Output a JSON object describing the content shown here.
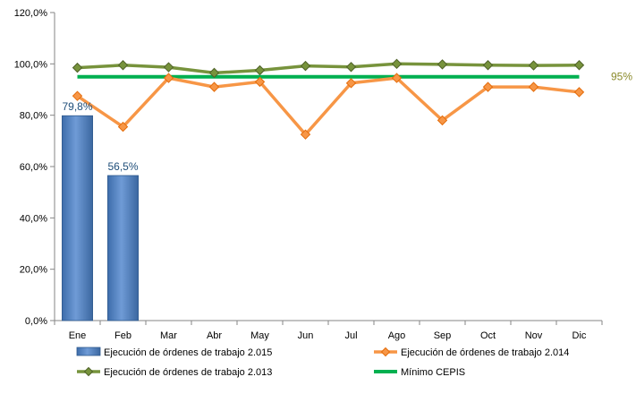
{
  "chart_data": {
    "type": "bar",
    "categories": [
      "Ene",
      "Feb",
      "Mar",
      "Abr",
      "May",
      "Jun",
      "Jul",
      "Ago",
      "Sep",
      "Oct",
      "Nov",
      "Dic"
    ],
    "ylim": [
      0,
      120
    ],
    "y_ticks": [
      "0,0%",
      "20,0%",
      "40,0%",
      "60,0%",
      "80,0%",
      "100,0%",
      "120,0%"
    ],
    "y_tick_values": [
      0,
      20,
      40,
      60,
      80,
      100,
      120
    ],
    "grid": false,
    "legend_position": "bottom",
    "series": [
      {
        "name": "Ejecución de órdenes de trabajo 2.015",
        "kind": "bar",
        "color": "#4F81BD",
        "values": [
          79.8,
          56.5,
          null,
          null,
          null,
          null,
          null,
          null,
          null,
          null,
          null,
          null
        ],
        "data_labels": [
          "79,8%",
          "56,5%"
        ]
      },
      {
        "name": "Ejecución de órdenes de trabajo 2.014",
        "kind": "line",
        "marker": "diamond",
        "color": "#F79646",
        "values": [
          87.5,
          75.5,
          94.5,
          91,
          93,
          72.5,
          92.5,
          94.5,
          78,
          91,
          91,
          89
        ]
      },
      {
        "name": "Ejecución de órdenes de trabajo 2.013",
        "kind": "line",
        "marker": "diamond",
        "color": "#77933C",
        "values": [
          98.5,
          99.5,
          98.7,
          96.5,
          97.5,
          99.2,
          98.8,
          100,
          99.8,
          99.5,
          99.4,
          99.5
        ]
      },
      {
        "name": "Mínimo CEPIS",
        "kind": "line",
        "marker": "none",
        "color": "#00B050",
        "values": [
          95,
          95,
          95,
          95,
          95,
          95,
          95,
          95,
          95,
          95,
          95,
          95
        ],
        "end_label": "95%"
      }
    ]
  }
}
